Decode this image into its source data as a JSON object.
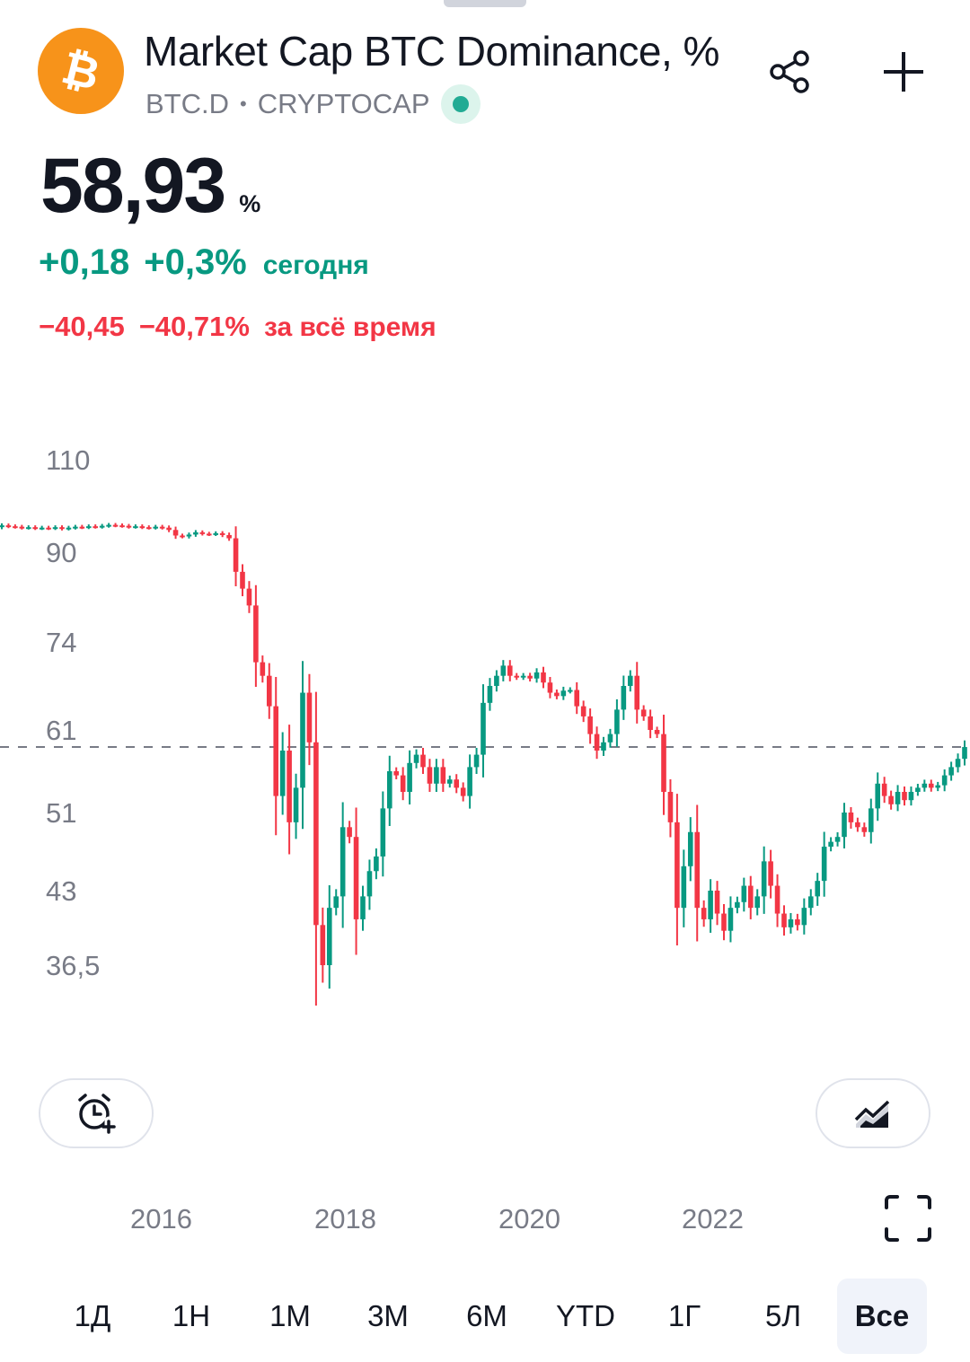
{
  "header": {
    "title": "Market Cap BTC Dominance, %",
    "symbol": "BTC.D",
    "exchange": "CRYPTOCAP",
    "status_color": "#22ab94",
    "logo_icon": "bitcoin-icon",
    "share_icon": "share-icon",
    "add_icon": "plus-icon"
  },
  "quote": {
    "price": "58,93",
    "unit": "%",
    "change_abs": "+0,18",
    "change_pct": "+0,3%",
    "change_label": "сегодня",
    "alltime_abs": "−40,45",
    "alltime_pct": "−40,71%",
    "alltime_label": "за всё время"
  },
  "colors": {
    "up": "#089981",
    "down": "#f23645",
    "brand": "#f7931a"
  },
  "chart_data": {
    "type": "candlestick",
    "y_ticks": [
      "110",
      "90",
      "74",
      "61",
      "51",
      "43",
      "36,5"
    ],
    "x_ticks": [
      "2016",
      "2018",
      "2020",
      "2022"
    ],
    "current_value": 58.93,
    "series": [
      {
        "close": 95.8,
        "up": true
      },
      {
        "close": 95.6,
        "up": false
      },
      {
        "close": 95.5,
        "up": false
      },
      {
        "close": 95.3,
        "up": false
      },
      {
        "close": 95.4,
        "up": true
      },
      {
        "close": 95.2,
        "up": false
      },
      {
        "close": 95.3,
        "up": true
      },
      {
        "close": 95.2,
        "up": false
      },
      {
        "close": 95.4,
        "up": true
      },
      {
        "close": 95.1,
        "up": false
      },
      {
        "close": 95.3,
        "up": true
      },
      {
        "close": 95.5,
        "up": true
      },
      {
        "close": 95.4,
        "up": false
      },
      {
        "close": 95.6,
        "up": true
      },
      {
        "close": 95.5,
        "up": false
      },
      {
        "close": 95.7,
        "up": true
      },
      {
        "close": 95.9,
        "up": true
      },
      {
        "close": 95.8,
        "up": false
      },
      {
        "close": 95.7,
        "up": false
      },
      {
        "close": 95.5,
        "up": false
      },
      {
        "close": 95.6,
        "up": true
      },
      {
        "close": 95.4,
        "up": false
      },
      {
        "close": 95.3,
        "up": false
      },
      {
        "close": 95.5,
        "up": true
      },
      {
        "close": 95.3,
        "up": false
      },
      {
        "close": 94.8,
        "up": false
      },
      {
        "close": 93.6,
        "up": false
      },
      {
        "close": 93.4,
        "up": false
      },
      {
        "close": 93.8,
        "up": true
      },
      {
        "close": 94.3,
        "up": true
      },
      {
        "close": 94.0,
        "up": false
      },
      {
        "close": 93.9,
        "up": false
      },
      {
        "close": 94.1,
        "up": true
      },
      {
        "close": 93.7,
        "up": false
      },
      {
        "close": 93.0,
        "up": false
      },
      {
        "close": 86.5,
        "up": false
      },
      {
        "close": 83.5,
        "up": false
      },
      {
        "close": 80.5,
        "up": false
      },
      {
        "close": 71.0,
        "up": false
      },
      {
        "close": 69.0,
        "up": false
      },
      {
        "close": 64.5,
        "up": false
      },
      {
        "close": 53.0,
        "up": false
      },
      {
        "close": 58.5,
        "up": true
      },
      {
        "close": 50.0,
        "up": false
      },
      {
        "close": 54.0,
        "up": true
      },
      {
        "close": 66.5,
        "up": true
      },
      {
        "close": 59.5,
        "up": false
      },
      {
        "close": 40.0,
        "up": false
      },
      {
        "close": 36.5,
        "up": false
      },
      {
        "close": 41.5,
        "up": true
      },
      {
        "close": 42.5,
        "up": true
      },
      {
        "close": 49.5,
        "up": true
      },
      {
        "close": 48.5,
        "up": false
      },
      {
        "close": 40.5,
        "up": false
      },
      {
        "close": 42.5,
        "up": true
      },
      {
        "close": 45.0,
        "up": true
      },
      {
        "close": 46.5,
        "up": true
      },
      {
        "close": 51.5,
        "up": true
      },
      {
        "close": 56.0,
        "up": true
      },
      {
        "close": 55.5,
        "up": false
      },
      {
        "close": 53.5,
        "up": false
      },
      {
        "close": 57.0,
        "up": true
      },
      {
        "close": 58.0,
        "up": true
      },
      {
        "close": 56.5,
        "up": false
      },
      {
        "close": 54.5,
        "up": false
      },
      {
        "close": 56.5,
        "up": true
      },
      {
        "close": 54.5,
        "up": false
      },
      {
        "close": 55.0,
        "up": true
      },
      {
        "close": 54.0,
        "up": false
      },
      {
        "close": 53.0,
        "up": false
      },
      {
        "close": 56.5,
        "up": true
      },
      {
        "close": 58.0,
        "up": true
      },
      {
        "close": 65.0,
        "up": true
      },
      {
        "close": 67.5,
        "up": true
      },
      {
        "close": 69.0,
        "up": true
      },
      {
        "close": 70.5,
        "up": true
      },
      {
        "close": 69.0,
        "up": false
      },
      {
        "close": 68.8,
        "up": false
      },
      {
        "close": 69.0,
        "up": true
      },
      {
        "close": 68.6,
        "up": false
      },
      {
        "close": 69.5,
        "up": true
      },
      {
        "close": 68.0,
        "up": false
      },
      {
        "close": 66.5,
        "up": false
      },
      {
        "close": 66.0,
        "up": false
      },
      {
        "close": 66.8,
        "up": true
      },
      {
        "close": 66.9,
        "up": true
      },
      {
        "close": 64.5,
        "up": false
      },
      {
        "close": 63.0,
        "up": false
      },
      {
        "close": 60.5,
        "up": false
      },
      {
        "close": 58.5,
        "up": false
      },
      {
        "close": 59.5,
        "up": true
      },
      {
        "close": 60.5,
        "up": true
      },
      {
        "close": 64.0,
        "up": true
      },
      {
        "close": 67.5,
        "up": true
      },
      {
        "close": 69.0,
        "up": true
      },
      {
        "close": 64.0,
        "up": false
      },
      {
        "close": 63.0,
        "up": false
      },
      {
        "close": 61.0,
        "up": false
      },
      {
        "close": 60.5,
        "up": false
      },
      {
        "close": 53.5,
        "up": false
      },
      {
        "close": 50.0,
        "up": false
      },
      {
        "close": 41.5,
        "up": false
      },
      {
        "close": 45.5,
        "up": true
      },
      {
        "close": 49.0,
        "up": true
      },
      {
        "close": 41.5,
        "up": false
      },
      {
        "close": 40.5,
        "up": false
      },
      {
        "close": 43.0,
        "up": true
      },
      {
        "close": 41.0,
        "up": false
      },
      {
        "close": 39.5,
        "up": false
      },
      {
        "close": 41.5,
        "up": true
      },
      {
        "close": 42.0,
        "up": true
      },
      {
        "close": 43.5,
        "up": true
      },
      {
        "close": 41.5,
        "up": false
      },
      {
        "close": 42.5,
        "up": true
      },
      {
        "close": 46.0,
        "up": true
      },
      {
        "close": 43.5,
        "up": false
      },
      {
        "close": 41.0,
        "up": false
      },
      {
        "close": 39.8,
        "up": false
      },
      {
        "close": 40.5,
        "up": true
      },
      {
        "close": 40.0,
        "up": false
      },
      {
        "close": 41.5,
        "up": true
      },
      {
        "close": 42.5,
        "up": true
      },
      {
        "close": 44.0,
        "up": true
      },
      {
        "close": 47.5,
        "up": true
      },
      {
        "close": 48.0,
        "up": true
      },
      {
        "close": 48.5,
        "up": true
      },
      {
        "close": 51.0,
        "up": true
      },
      {
        "close": 50.0,
        "up": false
      },
      {
        "close": 49.5,
        "up": false
      },
      {
        "close": 49.0,
        "up": false
      },
      {
        "close": 51.5,
        "up": true
      },
      {
        "close": 54.5,
        "up": true
      },
      {
        "close": 53.0,
        "up": false
      },
      {
        "close": 52.0,
        "up": false
      },
      {
        "close": 53.5,
        "up": true
      },
      {
        "close": 52.5,
        "up": false
      },
      {
        "close": 53.5,
        "up": true
      },
      {
        "close": 54.0,
        "up": true
      },
      {
        "close": 54.5,
        "up": true
      },
      {
        "close": 54.0,
        "up": false
      },
      {
        "close": 54.3,
        "up": true
      },
      {
        "close": 55.5,
        "up": true
      },
      {
        "close": 56.5,
        "up": true
      },
      {
        "close": 57.5,
        "up": true
      },
      {
        "close": 58.93,
        "up": true
      }
    ]
  },
  "actions": {
    "alert_icon": "add-alarm-icon",
    "indicator_icon": "chart-style-icon",
    "fullscreen_icon": "fullscreen-icon"
  },
  "periods": [
    {
      "label": "1Д"
    },
    {
      "label": "1Н"
    },
    {
      "label": "1М"
    },
    {
      "label": "3М"
    },
    {
      "label": "6М"
    },
    {
      "label": "YTD"
    },
    {
      "label": "1Г"
    },
    {
      "label": "5Л"
    },
    {
      "label": "Все",
      "active": true
    }
  ]
}
